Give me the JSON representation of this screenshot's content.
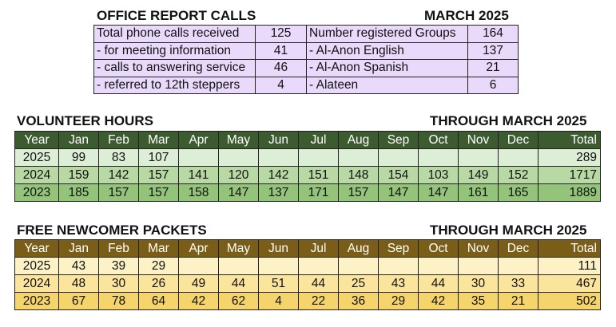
{
  "office": {
    "title": "OFFICE REPORT CALLS",
    "month": "MARCH 2025",
    "rows": [
      {
        "label": "Total phone calls received",
        "value": "125",
        "label2": "Number registered Groups",
        "value2": "164"
      },
      {
        "label": "- for meeting information",
        "value": "41",
        "label2": "- Al-Anon English",
        "value2": "137"
      },
      {
        "label": "- calls to answering service",
        "value": "46",
        "label2": "- Al-Anon Spanish",
        "value2": "21"
      },
      {
        "label": "- referred to 12th steppers",
        "value": "4",
        "label2": "- Alateen",
        "value2": "6"
      }
    ]
  },
  "volunteer": {
    "title": "VOLUNTEER HOURS",
    "through": "THROUGH MARCH 2025",
    "headers": [
      "Year",
      "Jan",
      "Feb",
      "Mar",
      "Apr",
      "May",
      "Jun",
      "Jul",
      "Aug",
      "Sep",
      "Oct",
      "Nov",
      "Dec",
      "Total"
    ],
    "rows": [
      [
        "2025",
        "99",
        "83",
        "107",
        "",
        "",
        "",
        "",
        "",
        "",
        "",
        "",
        "",
        "289"
      ],
      [
        "2024",
        "159",
        "142",
        "157",
        "141",
        "120",
        "142",
        "151",
        "148",
        "154",
        "103",
        "149",
        "152",
        "1717"
      ],
      [
        "2023",
        "185",
        "157",
        "157",
        "158",
        "147",
        "137",
        "171",
        "157",
        "147",
        "147",
        "161",
        "165",
        "1889"
      ]
    ]
  },
  "packets": {
    "title": "FREE NEWCOMER PACKETS",
    "through": "THROUGH MARCH 2025",
    "headers": [
      "Year",
      "Jan",
      "Feb",
      "Mar",
      "Apr",
      "May",
      "Jun",
      "Jul",
      "Aug",
      "Sep",
      "Oct",
      "Nov",
      "Dec",
      "Total"
    ],
    "rows": [
      [
        "2025",
        "43",
        "39",
        "29",
        "",
        "",
        "",
        "",
        "",
        "",
        "",
        "",
        "",
        "111"
      ],
      [
        "2024",
        "48",
        "30",
        "26",
        "49",
        "44",
        "51",
        "44",
        "25",
        "43",
        "44",
        "30",
        "33",
        "467"
      ],
      [
        "2023",
        "67",
        "78",
        "64",
        "42",
        "62",
        "4",
        "22",
        "36",
        "29",
        "42",
        "35",
        "21",
        "502"
      ]
    ]
  }
}
